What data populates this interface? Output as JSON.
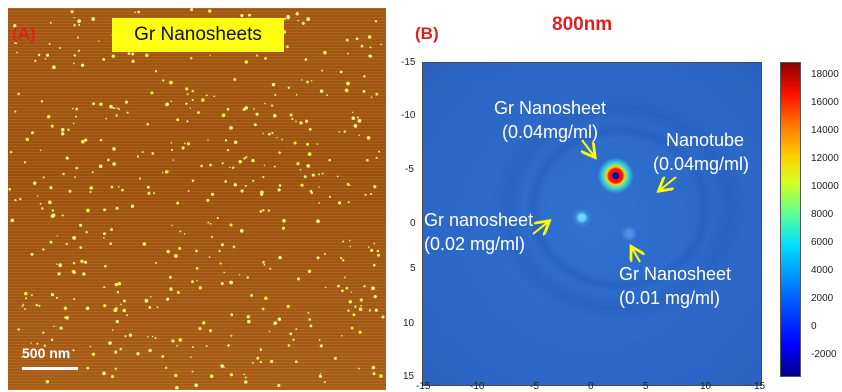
{
  "panel_a": {
    "label": "(A)",
    "title": "Gr Nanosheets",
    "scale_bar": "500 nm"
  },
  "panel_b": {
    "label": "(B)",
    "title": "800nm",
    "y_ticks": [
      "-15",
      "-10",
      "-5",
      "0",
      "5",
      "10",
      "15"
    ],
    "x_ticks": [
      "-15",
      "-10",
      "-5",
      "0",
      "5",
      "10",
      "15"
    ],
    "annotations": [
      {
        "line1": "Gr Nanosheet",
        "line2": "(0.04mg/ml)"
      },
      {
        "line1": "Nanotube",
        "line2": "(0.04mg/ml)"
      },
      {
        "line1": "Gr nanosheet",
        "line2": "(0.02 mg/ml)"
      },
      {
        "line1": "Gr Nanosheet",
        "line2": "(0.01 mg/ml)"
      }
    ],
    "colorbar_ticks": [
      "18000",
      "16000",
      "14000",
      "12000",
      "10000",
      "8000",
      "6000",
      "4000",
      "2000",
      "0",
      "-2000"
    ]
  },
  "colors": {
    "label_red": "#e02020",
    "highlight_yellow": "#ffff12",
    "afm_brown": "#a95b12",
    "heatmap_blue": "#2f70cf",
    "arrow_yellow": "#ffff00"
  }
}
